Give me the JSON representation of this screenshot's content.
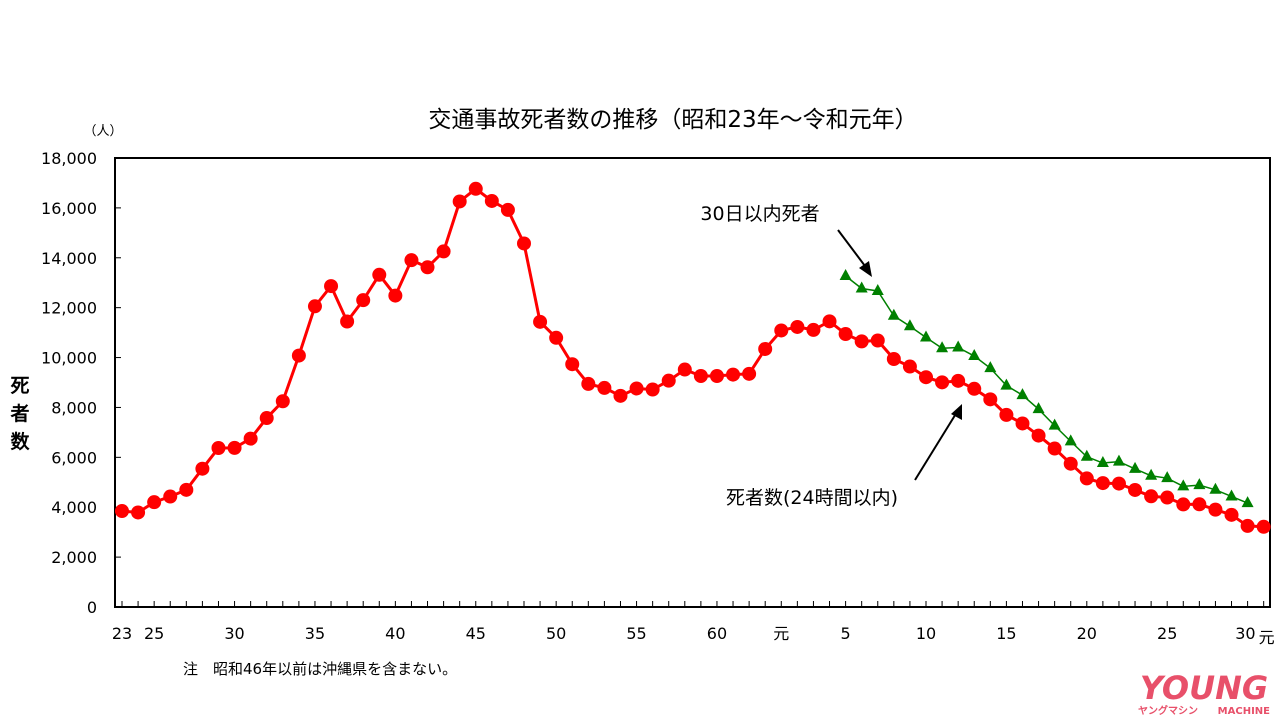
{
  "chart_data": {
    "type": "line",
    "title": "交通事故死者数の推移（昭和23年～令和元年）",
    "unit_label": "（人）",
    "ylabel": "死者数",
    "ylim": [
      0,
      18000
    ],
    "yticks": [
      0,
      2000,
      4000,
      6000,
      8000,
      10000,
      12000,
      14000,
      16000,
      18000
    ],
    "ytick_labels": [
      "0",
      "2,000",
      "4,000",
      "6,000",
      "8,000",
      "10,000",
      "12,000",
      "14,000",
      "16,000",
      "18,000"
    ],
    "x_years": [
      1948,
      1949,
      1950,
      1951,
      1952,
      1953,
      1954,
      1955,
      1956,
      1957,
      1958,
      1959,
      1960,
      1961,
      1962,
      1963,
      1964,
      1965,
      1966,
      1967,
      1968,
      1969,
      1970,
      1971,
      1972,
      1973,
      1974,
      1975,
      1976,
      1977,
      1978,
      1979,
      1980,
      1981,
      1982,
      1983,
      1984,
      1985,
      1986,
      1987,
      1988,
      1989,
      1990,
      1991,
      1992,
      1993,
      1994,
      1995,
      1996,
      1997,
      1998,
      1999,
      2000,
      2001,
      2002,
      2003,
      2004,
      2005,
      2006,
      2007,
      2008,
      2009,
      2010,
      2011,
      2012,
      2013,
      2014,
      2015,
      2016,
      2017,
      2018,
      2019
    ],
    "xtick_labels": [
      {
        "index": 0,
        "label": "23"
      },
      {
        "index": 2,
        "label": "25"
      },
      {
        "index": 7,
        "label": "30"
      },
      {
        "index": 12,
        "label": "35"
      },
      {
        "index": 17,
        "label": "40"
      },
      {
        "index": 22,
        "label": "45"
      },
      {
        "index": 27,
        "label": "50"
      },
      {
        "index": 32,
        "label": "55"
      },
      {
        "index": 37,
        "label": "60"
      },
      {
        "index": 41,
        "label": "元"
      },
      {
        "index": 45,
        "label": "5"
      },
      {
        "index": 50,
        "label": "10"
      },
      {
        "index": 55,
        "label": "15"
      },
      {
        "index": 60,
        "label": "20"
      },
      {
        "index": 65,
        "label": "25"
      },
      {
        "index": 70,
        "label": "30"
      },
      {
        "index": 71,
        "label": "元"
      }
    ],
    "series": [
      {
        "name": "死者数(24時間以内)",
        "color": "#ff0000",
        "marker": "circle",
        "start_index": 0,
        "values": [
          3848,
          3790,
          4202,
          4429,
          4696,
          5544,
          6374,
          6379,
          6751,
          7575,
          8248,
          10079,
          12055,
          12865,
          11445,
          12301,
          13318,
          12484,
          13904,
          13618,
          14256,
          16257,
          16765,
          16278,
          15918,
          14574,
          11432,
          10792,
          9734,
          8945,
          8783,
          8466,
          8760,
          8719,
          9073,
          9520,
          9262,
          9261,
          9317,
          9347,
          10344,
          11086,
          11227,
          11109,
          11451,
          10942,
          10649,
          10684,
          9942,
          9640,
          9211,
          9006,
          9066,
          8747,
          8326,
          7702,
          7358,
          6871,
          6352,
          5744,
          5155,
          4968,
          4948,
          4691,
          4438,
          4388,
          4113,
          4117,
          3904,
          3694,
          3250,
          3215
        ]
      },
      {
        "name": "30日以内死者",
        "color": "#008000",
        "marker": "triangle",
        "start_index": 45,
        "values": [
          13269,
          12768,
          12670,
          11674,
          11254,
          10805,
          10372,
          10403,
          10060,
          9575,
          8877,
          8492,
          7931,
          7272,
          6639,
          6023,
          5772,
          5828,
          5535,
          5261,
          5165,
          4838,
          4885,
          4698,
          4431,
          4166
        ]
      }
    ],
    "annotations": {
      "thirty_day": "30日以内死者",
      "twenty_four_hour": "死者数(24時間以内)"
    },
    "note": "注　昭和46年以前は沖縄県を含まない。",
    "grid": false,
    "legend": "none"
  },
  "logo": {
    "main": "YOUNG",
    "sub": "MACHINE",
    "kana": "ヤングマシン",
    "color": "#e8506a"
  }
}
